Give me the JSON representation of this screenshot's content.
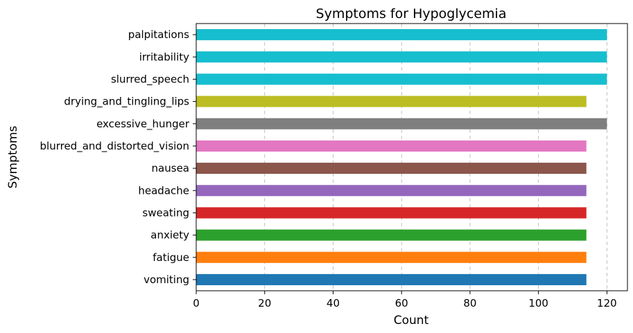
{
  "chart_data": {
    "type": "bar",
    "orientation": "horizontal",
    "title": "Symptoms for Hypoglycemia",
    "xlabel": "Count",
    "ylabel": "Symptoms",
    "xlim": [
      0,
      126
    ],
    "xticks": [
      0,
      20,
      40,
      60,
      80,
      100,
      120
    ],
    "grid": "x-dashed",
    "categories": [
      "vomiting",
      "fatigue",
      "anxiety",
      "sweating",
      "headache",
      "nausea",
      "blurred_and_distorted_vision",
      "excessive_hunger",
      "drying_and_tingling_lips",
      "slurred_speech",
      "irritability",
      "palpitations"
    ],
    "values": [
      114,
      114,
      114,
      114,
      114,
      114,
      114,
      120,
      114,
      120,
      120,
      120
    ],
    "colors": [
      "#1f77b4",
      "#ff7f0e",
      "#2ca02c",
      "#d62728",
      "#9467bd",
      "#8c564b",
      "#e377c2",
      "#7f7f7f",
      "#bcbd22",
      "#17becf",
      "#17becf",
      "#17becf"
    ]
  }
}
